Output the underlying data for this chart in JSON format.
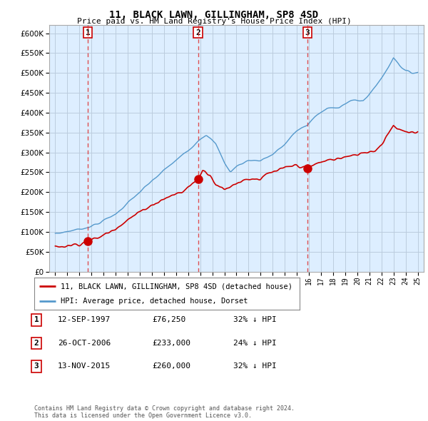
{
  "title": "11, BLACK LAWN, GILLINGHAM, SP8 4SD",
  "subtitle": "Price paid vs. HM Land Registry's House Price Index (HPI)",
  "ylim": [
    0,
    620000
  ],
  "yticks": [
    0,
    50000,
    100000,
    150000,
    200000,
    250000,
    300000,
    350000,
    400000,
    450000,
    500000,
    550000,
    600000
  ],
  "background_color": "#ffffff",
  "chart_bg_color": "#ddeeff",
  "grid_color": "#bbccdd",
  "hpi_color": "#5599cc",
  "price_color": "#cc0000",
  "legend_label_price": "11, BLACK LAWN, GILLINGHAM, SP8 4SD (detached house)",
  "legend_label_hpi": "HPI: Average price, detached house, Dorset",
  "sale_markers": [
    {
      "date_num": 1997.7,
      "price": 76250,
      "label": "1"
    },
    {
      "date_num": 2006.82,
      "price": 233000,
      "label": "2"
    },
    {
      "date_num": 2015.87,
      "price": 260000,
      "label": "3"
    }
  ],
  "sale_vlines": [
    1997.7,
    2006.82,
    2015.87
  ],
  "table_rows": [
    [
      "1",
      "12-SEP-1997",
      "£76,250",
      "32% ↓ HPI"
    ],
    [
      "2",
      "26-OCT-2006",
      "£233,000",
      "24% ↓ HPI"
    ],
    [
      "3",
      "13-NOV-2015",
      "£260,000",
      "32% ↓ HPI"
    ]
  ],
  "footer": "Contains HM Land Registry data © Crown copyright and database right 2024.\nThis data is licensed under the Open Government Licence v3.0.",
  "xtick_years": [
    1995,
    1996,
    1997,
    1998,
    1999,
    2000,
    2001,
    2002,
    2003,
    2004,
    2005,
    2006,
    2007,
    2008,
    2009,
    2010,
    2011,
    2012,
    2013,
    2014,
    2015,
    2016,
    2017,
    2018,
    2019,
    2020,
    2021,
    2022,
    2023,
    2024,
    2025
  ]
}
